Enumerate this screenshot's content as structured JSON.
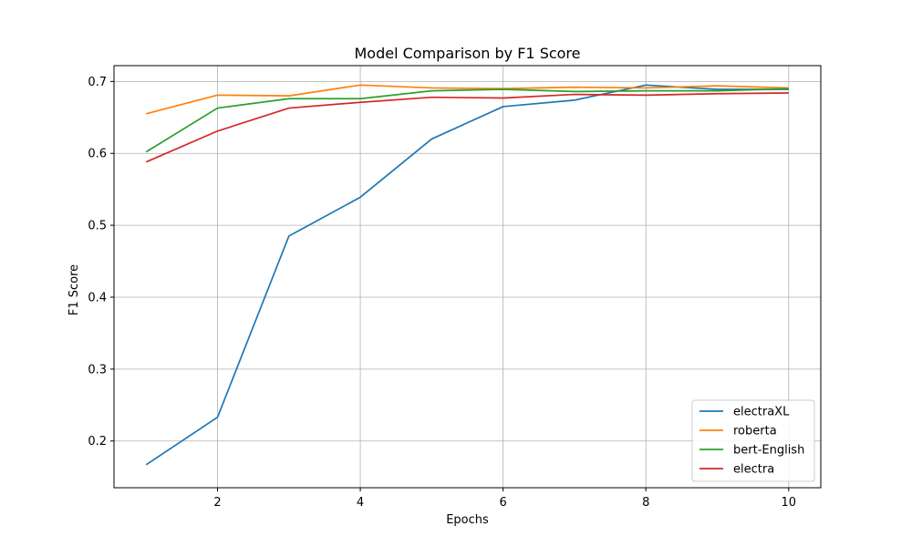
{
  "chart_data": {
    "type": "line",
    "title": "Model Comparison by F1 Score",
    "xlabel": "Epochs",
    "ylabel": "F1 Score",
    "x": [
      1,
      2,
      3,
      4,
      5,
      6,
      7,
      8,
      9,
      10
    ],
    "xlim": [
      0.55,
      10.45
    ],
    "ylim": [
      0.135,
      0.722
    ],
    "xticks": [
      2,
      4,
      6,
      8,
      10
    ],
    "yticks": [
      0.2,
      0.3,
      0.4,
      0.5,
      0.6,
      0.7
    ],
    "grid": true,
    "legend_position": "lower-right",
    "series": [
      {
        "name": "electraXL",
        "color": "#1f77b4",
        "values": [
          0.167,
          0.233,
          0.485,
          0.539,
          0.62,
          0.665,
          0.674,
          0.695,
          0.689,
          0.689
        ]
      },
      {
        "name": "roberta",
        "color": "#ff7f0e",
        "values": [
          0.655,
          0.681,
          0.68,
          0.695,
          0.691,
          0.69,
          0.692,
          0.691,
          0.694,
          0.691
        ]
      },
      {
        "name": "bert-English",
        "color": "#2ca02c",
        "values": [
          0.602,
          0.663,
          0.676,
          0.676,
          0.687,
          0.689,
          0.686,
          0.687,
          0.687,
          0.69
        ]
      },
      {
        "name": "electra",
        "color": "#d62728",
        "values": [
          0.588,
          0.631,
          0.663,
          0.671,
          0.678,
          0.677,
          0.682,
          0.681,
          0.683,
          0.684
        ]
      }
    ]
  }
}
